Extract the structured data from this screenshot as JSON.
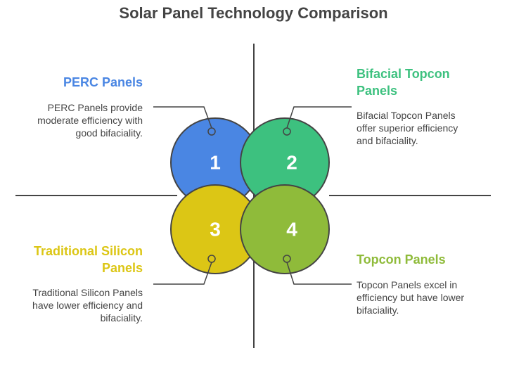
{
  "title": "Solar Panel Technology Comparison",
  "quadrants": [
    {
      "number": "1",
      "title": "PERC Panels",
      "description": "PERC Panels provide moderate efficiency with good bifaciality.",
      "color": "#4a86e3"
    },
    {
      "number": "2",
      "title": "Bifacial Topcon Panels",
      "description": "Bifacial Topcon Panels offer superior efficiency and bifaciality.",
      "color": "#3dc17f"
    },
    {
      "number": "3",
      "title": "Traditional Silicon Panels",
      "description": "Traditional Silicon Panels have lower efficiency and bifaciality.",
      "color": "#dcc615"
    },
    {
      "number": "4",
      "title": "Topcon Panels",
      "description": "Topcon Panels excel in efficiency but have lower bifaciality.",
      "color": "#8fbb3a"
    }
  ]
}
